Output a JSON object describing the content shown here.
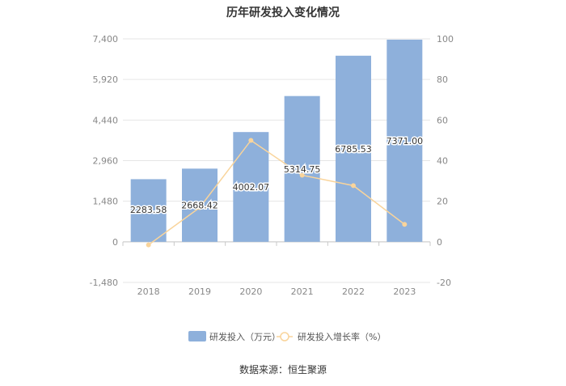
{
  "chart_data": {
    "type": "bar+line",
    "title": "历年研发投入变化情况",
    "categories": [
      "2018",
      "2019",
      "2020",
      "2021",
      "2022",
      "2023"
    ],
    "series": [
      {
        "name": "研发投入（万元）",
        "type": "bar",
        "axis": "left",
        "values": [
          2283.58,
          2668.42,
          4002.07,
          5314.75,
          6785.53,
          7371.0
        ],
        "labels": [
          "2283.58",
          "2668.42",
          "4002.07",
          "5314.75",
          "6785.53",
          "7371.00"
        ],
        "color": "#8eb0db"
      },
      {
        "name": "研发投入增长率（%）",
        "type": "line",
        "axis": "right",
        "values": [
          -1.5,
          16.9,
          49.98,
          32.8,
          27.7,
          8.6
        ],
        "color": "#f9d49b"
      }
    ],
    "y_left": {
      "min": -1480,
      "max": 7400,
      "ticks": [
        7400,
        5920,
        4440,
        2960,
        1480,
        0,
        -1480
      ],
      "tick_labels": [
        "7,400",
        "5,920",
        "4,440",
        "2,960",
        "1,480",
        "0",
        "-1,480"
      ]
    },
    "y_right": {
      "min": -20,
      "max": 100,
      "ticks": [
        100,
        80,
        60,
        40,
        20,
        0,
        -20
      ],
      "tick_labels": [
        "100",
        "80",
        "60",
        "40",
        "20",
        "0",
        "-20"
      ]
    },
    "grid": true,
    "legend_position": "bottom",
    "source": "数据来源：恒生聚源"
  },
  "colors": {
    "bar": "#8eb0db",
    "line": "#f9d49b",
    "grid": "#e6e6e6",
    "axis_text": "#888888",
    "title": "#333333"
  }
}
